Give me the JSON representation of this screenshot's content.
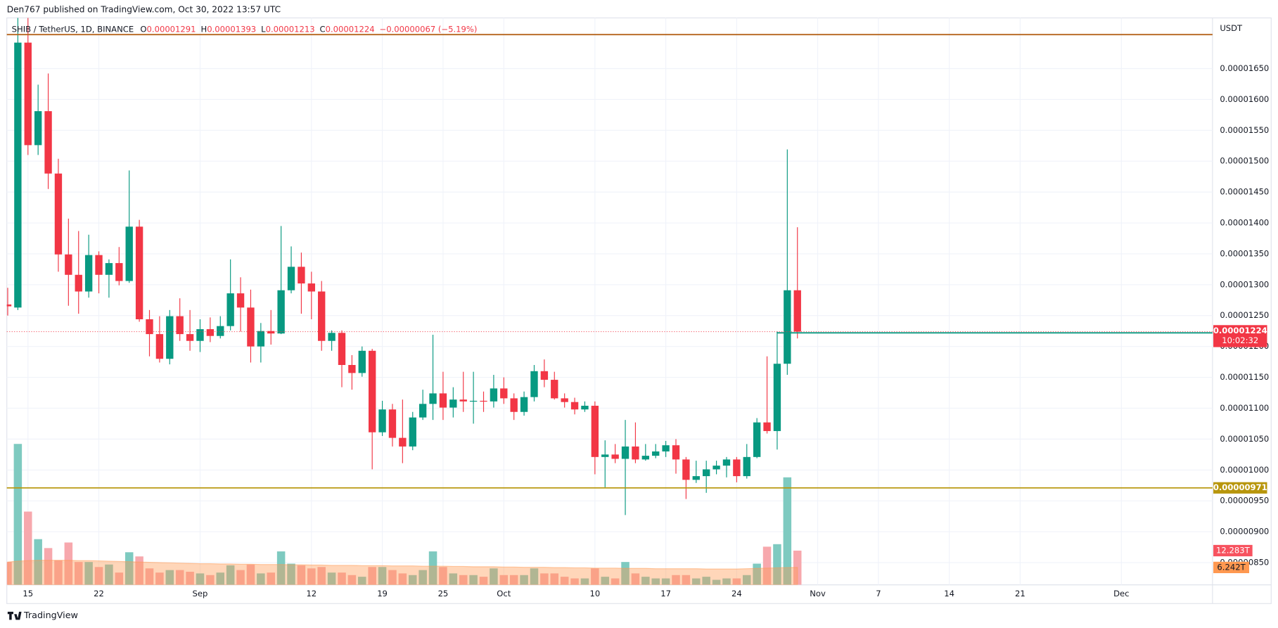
{
  "header": {
    "author_line": "Den767 published on TradingView.com, Oct 30, 2022 13:57 UTC",
    "symbol": "SHIB / TetherUS, 1D, BINANCE",
    "ohlc_letters": [
      "O",
      "H",
      "L",
      "C"
    ],
    "change": "−0.00000067 (−5.19%)",
    "currency": "USDT"
  },
  "footer": {
    "brand": "TradingView"
  },
  "chart_data": {
    "type": "candlestick",
    "x": [
      "Aug 13",
      "Aug 14",
      "Aug 15",
      "Aug 16",
      "Aug 17",
      "Aug 18",
      "Aug 19",
      "Aug 20",
      "Aug 21",
      "Aug 22",
      "Aug 23",
      "Aug 24",
      "Aug 25",
      "Aug 26",
      "Aug 27",
      "Aug 28",
      "Aug 29",
      "Aug 30",
      "Aug 31",
      "Sep 1",
      "Sep 2",
      "Sep 3",
      "Sep 4",
      "Sep 5",
      "Sep 6",
      "Sep 7",
      "Sep 8",
      "Sep 9",
      "Sep 10",
      "Sep 11",
      "Sep 12",
      "Sep 13",
      "Sep 14",
      "Sep 15",
      "Sep 16",
      "Sep 17",
      "Sep 18",
      "Sep 19",
      "Sep 20",
      "Sep 21",
      "Sep 22",
      "Sep 23",
      "Sep 24",
      "Sep 25",
      "Sep 26",
      "Sep 27",
      "Sep 28",
      "Sep 29",
      "Sep 30",
      "Oct 1",
      "Oct 2",
      "Oct 3",
      "Oct 4",
      "Oct 5",
      "Oct 6",
      "Oct 7",
      "Oct 8",
      "Oct 9",
      "Oct 10",
      "Oct 11",
      "Oct 12",
      "Oct 13",
      "Oct 14",
      "Oct 15",
      "Oct 16",
      "Oct 17",
      "Oct 18",
      "Oct 19",
      "Oct 20",
      "Oct 21",
      "Oct 22",
      "Oct 23",
      "Oct 24",
      "Oct 25",
      "Oct 26",
      "Oct 27",
      "Oct 28",
      "Oct 29",
      "Oct 30"
    ],
    "open": [
      1.268e-05,
      1.263e-05,
      1.692e-05,
      1.526e-05,
      1.581e-05,
      1.48e-05,
      1.349e-05,
      1.316e-05,
      1.289e-05,
      1.348e-05,
      1.316e-05,
      1.335e-05,
      1.306e-05,
      1.394e-05,
      1.244e-05,
      1.22e-05,
      1.18e-05,
      1.249e-05,
      1.22e-05,
      1.209e-05,
      1.228e-05,
      1.217e-05,
      1.233e-05,
      1.286e-05,
      1.263e-05,
      1.2e-05,
      1.225e-05,
      1.221e-05,
      1.291e-05,
      1.329e-05,
      1.302e-05,
      1.289e-05,
      1.209e-05,
      1.222e-05,
      1.17e-05,
      1.157e-05,
      1.193e-05,
      1.061e-05,
      1.098e-05,
      1.052e-05,
      1.038e-05,
      1.085e-05,
      1.107e-05,
      1.124e-05,
      1.101e-05,
      1.114e-05,
      1.111e-05,
      1.112e-05,
      1.111e-05,
      1.132e-05,
      1.116e-05,
      1.094e-05,
      1.118e-05,
      1.16e-05,
      1.146e-05,
      1.116e-05,
      1.11e-05,
      1.098e-05,
      1.104e-05,
      1.021e-05,
      1.025e-05,
      1.018e-05,
      1.038e-05,
      1.017e-05,
      1.023e-05,
      1.03e-05,
      1.04e-05,
      1.017e-05,
      9.84e-06,
      9.9e-06,
      1.001e-05,
      1.007e-05,
      1.017e-05,
      9.9e-06,
      1.021e-05,
      1.077e-05,
      1.063e-05,
      1.172e-05,
      1.291e-05
    ],
    "high": [
      1.295e-05,
      1.732e-05,
      1.732e-05,
      1.624e-05,
      1.642e-05,
      1.504e-05,
      1.407e-05,
      1.387e-05,
      1.381e-05,
      1.354e-05,
      1.341e-05,
      1.361e-05,
      1.485e-05,
      1.405e-05,
      1.259e-05,
      1.249e-05,
      1.259e-05,
      1.278e-05,
      1.259e-05,
      1.244e-05,
      1.247e-05,
      1.249e-05,
      1.341e-05,
      1.312e-05,
      1.292e-05,
      1.238e-05,
      1.259e-05,
      1.395e-05,
      1.362e-05,
      1.352e-05,
      1.321e-05,
      1.306e-05,
      1.226e-05,
      1.226e-05,
      1.186e-05,
      1.2e-05,
      1.196e-05,
      1.112e-05,
      1.107e-05,
      1.114e-05,
      1.094e-05,
      1.13e-05,
      1.219e-05,
      1.159e-05,
      1.134e-05,
      1.159e-05,
      1.159e-05,
      1.127e-05,
      1.154e-05,
      1.15e-05,
      1.124e-05,
      1.127e-05,
      1.17e-05,
      1.179e-05,
      1.159e-05,
      1.124e-05,
      1.117e-05,
      1.111e-05,
      1.111e-05,
      1.048e-05,
      1.042e-05,
      1.081e-05,
      1.077e-05,
      1.042e-05,
      1.042e-05,
      1.047e-05,
      1.05e-05,
      1.021e-05,
      1.015e-05,
      1.015e-05,
      1.015e-05,
      1.021e-05,
      1.021e-05,
      1.042e-05,
      1.084e-05,
      1.184e-05,
      1.224e-05,
      1.519e-05,
      1.393e-05
    ],
    "low": [
      1.25e-05,
      1.259e-05,
      1.51e-05,
      1.51e-05,
      1.455e-05,
      1.321e-05,
      1.266e-05,
      1.253e-05,
      1.279e-05,
      1.286e-05,
      1.279e-05,
      1.299e-05,
      1.303e-05,
      1.24e-05,
      1.184e-05,
      1.174e-05,
      1.171e-05,
      1.209e-05,
      1.193e-05,
      1.191e-05,
      1.207e-05,
      1.213e-05,
      1.226e-05,
      1.224e-05,
      1.174e-05,
      1.174e-05,
      1.203e-05,
      1.22e-05,
      1.286e-05,
      1.253e-05,
      1.244e-05,
      1.193e-05,
      1.193e-05,
      1.134e-05,
      1.13e-05,
      1.151e-05,
      1.001e-05,
      1.055e-05,
      1.038e-05,
      1.011e-05,
      1.032e-05,
      1.081e-05,
      1.081e-05,
      1.081e-05,
      1.085e-05,
      1.094e-05,
      1.075e-05,
      1.094e-05,
      1.101e-05,
      1.107e-05,
      1.081e-05,
      1.088e-05,
      1.111e-05,
      1.134e-05,
      1.114e-05,
      1.101e-05,
      1.09e-05,
      1.094e-05,
      9.93e-06,
      9.72e-06,
      1.011e-05,
      9.27e-06,
      1.011e-05,
      1.015e-05,
      1.019e-05,
      1.021e-05,
      9.94e-06,
      9.53e-06,
      9.79e-06,
      9.63e-06,
      9.93e-06,
      9.88e-06,
      9.8e-06,
      9.86e-06,
      1.019e-05,
      1.059e-05,
      1.033e-05,
      1.154e-05,
      1.213e-05
    ],
    "close": [
      1.265e-05,
      1.692e-05,
      1.526e-05,
      1.581e-05,
      1.48e-05,
      1.349e-05,
      1.316e-05,
      1.289e-05,
      1.348e-05,
      1.316e-05,
      1.335e-05,
      1.306e-05,
      1.394e-05,
      1.244e-05,
      1.22e-05,
      1.18e-05,
      1.249e-05,
      1.22e-05,
      1.209e-05,
      1.228e-05,
      1.217e-05,
      1.233e-05,
      1.286e-05,
      1.263e-05,
      1.2e-05,
      1.225e-05,
      1.221e-05,
      1.291e-05,
      1.329e-05,
      1.302e-05,
      1.289e-05,
      1.209e-05,
      1.222e-05,
      1.17e-05,
      1.157e-05,
      1.193e-05,
      1.061e-05,
      1.098e-05,
      1.052e-05,
      1.038e-05,
      1.085e-05,
      1.107e-05,
      1.124e-05,
      1.101e-05,
      1.114e-05,
      1.111e-05,
      1.112e-05,
      1.111e-05,
      1.132e-05,
      1.116e-05,
      1.094e-05,
      1.118e-05,
      1.16e-05,
      1.146e-05,
      1.116e-05,
      1.11e-05,
      1.098e-05,
      1.104e-05,
      1.021e-05,
      1.025e-05,
      1.018e-05,
      1.038e-05,
      1.017e-05,
      1.023e-05,
      1.03e-05,
      1.04e-05,
      1.017e-05,
      9.84e-06,
      9.9e-06,
      1.001e-05,
      1.007e-05,
      1.017e-05,
      9.9e-06,
      1.021e-05,
      1.077e-05,
      1.063e-05,
      1.172e-05,
      1.291e-05,
      1.224e-05
    ],
    "volume": [
      8.2,
      50.6,
      26.3,
      16.4,
      13.2,
      8.8,
      15.2,
      8.2,
      8.2,
      6.4,
      7.3,
      4.4,
      11.7,
      10.2,
      5.9,
      4.4,
      5.3,
      5.3,
      4.7,
      4.1,
      3.5,
      4.4,
      7,
      5.3,
      7.3,
      4.1,
      4.4,
      12,
      7.6,
      7,
      5.9,
      6.4,
      4.4,
      4.4,
      3.5,
      2.9,
      6.4,
      6.4,
      5.3,
      4.1,
      3.5,
      5.3,
      12,
      6.4,
      4.1,
      3.5,
      3.5,
      2.9,
      5.9,
      3.5,
      3.5,
      3.5,
      5.9,
      4.1,
      4.1,
      2.9,
      2.3,
      2.3,
      5.9,
      2.9,
      2.3,
      8.2,
      4.1,
      2.9,
      2.3,
      2.3,
      3.5,
      3.5,
      2.3,
      2.9,
      1.8,
      2.3,
      2.3,
      3.5,
      7.6,
      13.7,
      14.6,
      38.6,
      12.283
    ],
    "volume_label": "12.283T",
    "volume_ma": [
      8.2,
      8.5,
      8.7,
      8.8,
      8.8,
      8.8,
      8.8,
      8.7,
      8.7,
      8.6,
      8.5,
      8.4,
      8.3,
      8.2,
      8.1,
      8,
      7.9,
      7.8,
      7.7,
      7.6,
      7.6,
      7.5,
      7.5,
      7.4,
      7.4,
      7.3,
      7.3,
      7.3,
      7.2,
      7.2,
      7.1,
      7.1,
      7,
      7,
      7,
      6.9,
      6.9,
      6.9,
      6.8,
      6.8,
      6.8,
      6.7,
      6.7,
      6.7,
      6.6,
      6.6,
      6.5,
      6.5,
      6.5,
      6.4,
      6.4,
      6.3,
      6.3,
      6.3,
      6.2,
      6.2,
      6.1,
      6.1,
      6,
      6,
      6,
      5.9,
      5.9,
      5.9,
      5.8,
      5.8,
      5.8,
      5.8,
      5.8,
      5.7,
      5.7,
      5.7,
      5.7,
      5.8,
      5.9,
      6,
      6.1,
      6.2,
      6.242
    ],
    "volume_ma_label": "6.242T",
    "countdown": "10:02:32",
    "up_color": "#089981",
    "down_color": "#f23645",
    "volume_up_color": "#7ecac0",
    "volume_down_color": "#f7a8ad",
    "volume_ma_color": "#ff9850",
    "levels": [
      {
        "value": 1.705e-05,
        "color": "#b5651d",
        "label_visible": false
      },
      {
        "value": 1.222e-05,
        "color": "#089981",
        "from": "Oct 28",
        "label_visible": true
      },
      {
        "value": 9.71e-06,
        "color": "#b8960c",
        "label_visible": true
      }
    ],
    "xlim": [
      "Aug 13",
      "Dec 10"
    ],
    "xticks": [
      {
        "value": "Aug 15",
        "label": "15"
      },
      {
        "value": "Aug 22",
        "label": "22"
      },
      {
        "value": "Sep 1",
        "label": "Sep"
      },
      {
        "value": "Sep 12",
        "label": "12"
      },
      {
        "value": "Sep 19",
        "label": "19"
      },
      {
        "value": "Sep 25",
        "label": "25"
      },
      {
        "value": "Oct 1",
        "label": "Oct"
      },
      {
        "value": "Oct 10",
        "label": "10"
      },
      {
        "value": "Oct 17",
        "label": "17"
      },
      {
        "value": "Oct 24",
        "label": "24"
      },
      {
        "value": "Nov 1",
        "label": "Nov"
      },
      {
        "value": "Nov 7",
        "label": "7"
      },
      {
        "value": "Nov 14",
        "label": "14"
      },
      {
        "value": "Nov 21",
        "label": "21"
      },
      {
        "value": "Dec 1",
        "label": "Dec"
      }
    ],
    "ylim": [
      8.14e-06,
      1.732e-05
    ],
    "yticks": [
      {
        "value": 1.65e-05,
        "label": "0.00001650"
      },
      {
        "value": 1.6e-05,
        "label": "0.00001600"
      },
      {
        "value": 1.55e-05,
        "label": "0.00001550"
      },
      {
        "value": 1.5e-05,
        "label": "0.00001500"
      },
      {
        "value": 1.45e-05,
        "label": "0.00001450"
      },
      {
        "value": 1.4e-05,
        "label": "0.00001400"
      },
      {
        "value": 1.35e-05,
        "label": "0.00001350"
      },
      {
        "value": 1.3e-05,
        "label": "0.00001300"
      },
      {
        "value": 1.25e-05,
        "label": "0.00001250"
      },
      {
        "value": 1.2e-05,
        "label": "0.00001200"
      },
      {
        "value": 1.15e-05,
        "label": "0.00001150"
      },
      {
        "value": 1.1e-05,
        "label": "0.00001100"
      },
      {
        "value": 1.05e-05,
        "label": "0.00001050"
      },
      {
        "value": 1e-05,
        "label": "0.00001000"
      },
      {
        "value": 9.5e-06,
        "label": "0.00000950"
      },
      {
        "value": 9e-06,
        "label": "0.00000900"
      },
      {
        "value": 8.5e-06,
        "label": "0.00000850"
      }
    ],
    "grid": true
  }
}
